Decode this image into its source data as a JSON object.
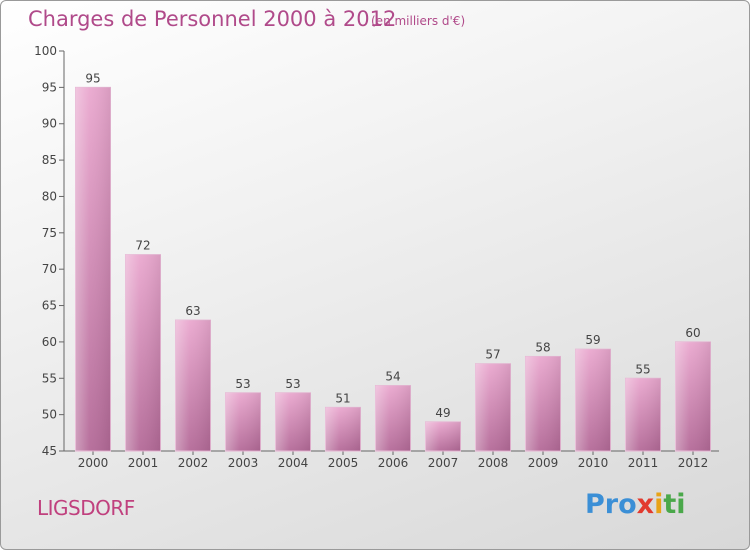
{
  "title": "Charges de Personnel 2000 à 2012",
  "subtitle": "(en milliers d'€)",
  "place": "LIGSDORF",
  "logo": {
    "p1": "Pro",
    "p2": "x",
    "p3": "i",
    "p4": "ti"
  },
  "colors": {
    "bar_light": "#f0b4d8",
    "bar_dark": "#b56d9a",
    "title": "#b04a8a"
  },
  "chart_data": {
    "type": "bar",
    "categories": [
      "2000",
      "2001",
      "2002",
      "2003",
      "2004",
      "2005",
      "2006",
      "2007",
      "2008",
      "2009",
      "2010",
      "2011",
      "2012"
    ],
    "values": [
      95,
      72,
      63,
      53,
      53,
      51,
      54,
      49,
      57,
      58,
      59,
      55,
      60
    ],
    "ylim": [
      45,
      100
    ],
    "yticks": [
      45,
      50,
      55,
      60,
      65,
      70,
      75,
      80,
      85,
      90,
      95,
      100
    ],
    "grid": false
  }
}
